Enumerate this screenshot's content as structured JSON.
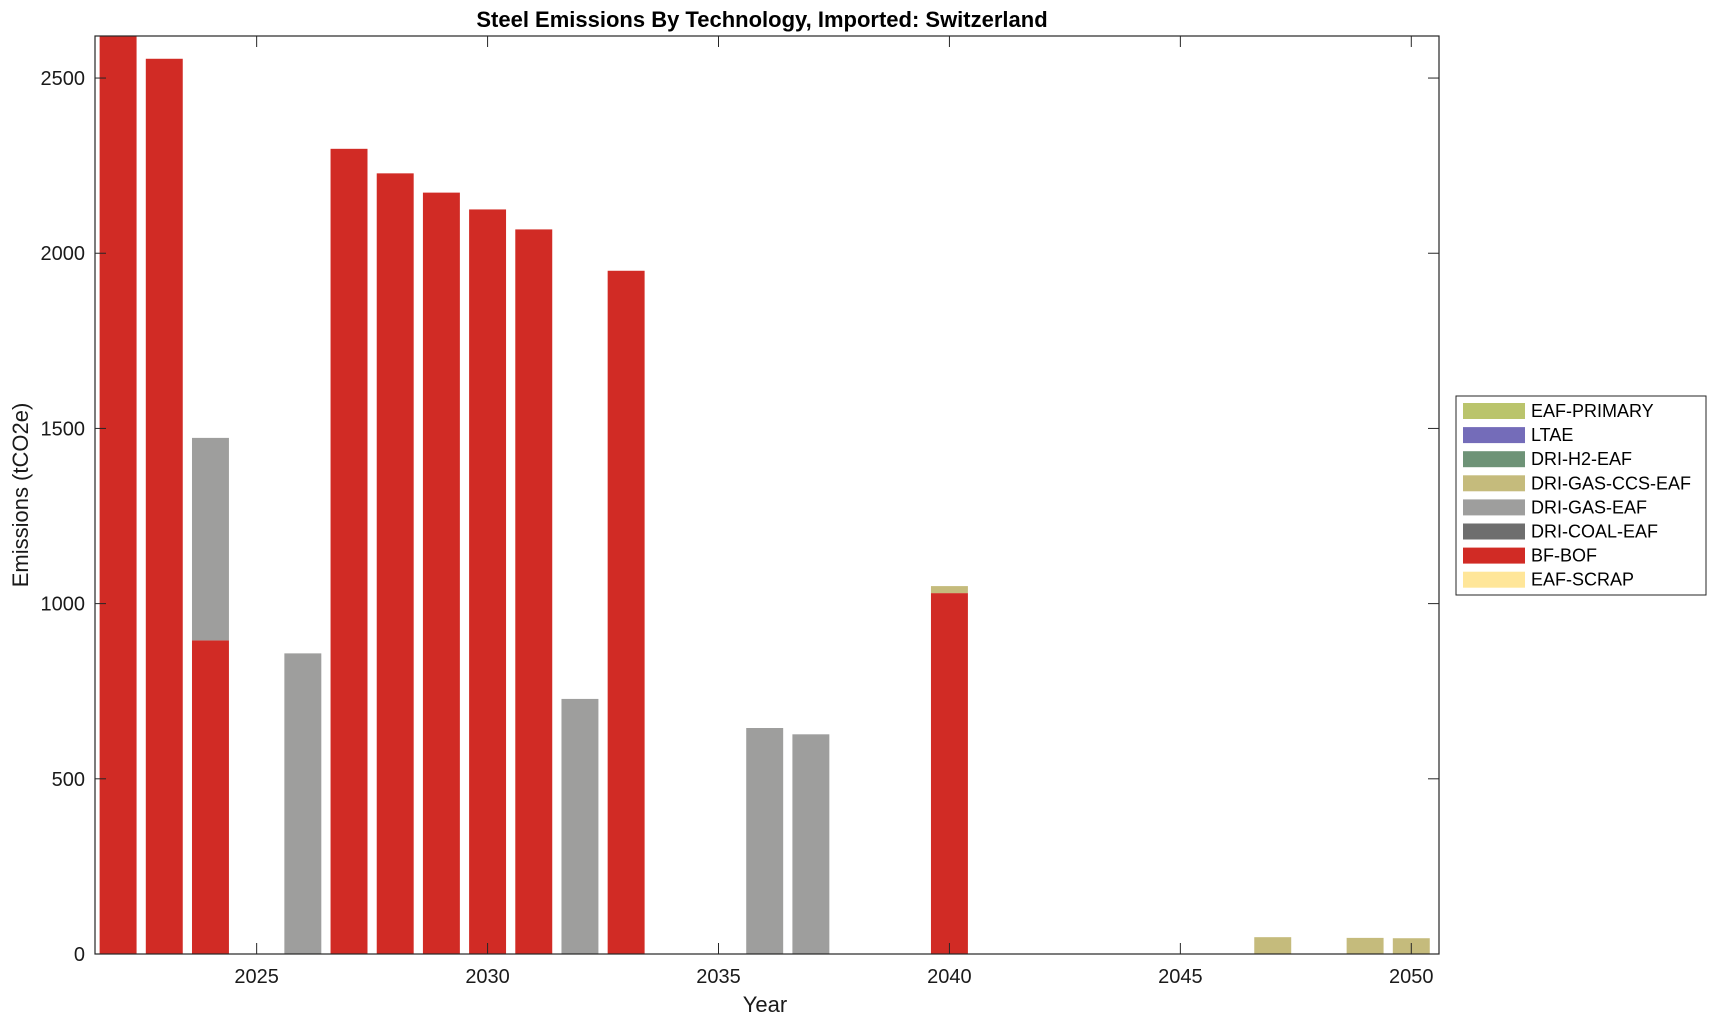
{
  "chart_data": {
    "type": "bar",
    "stacked": true,
    "title": "Steel Emissions By Technology, Imported: Switzerland",
    "xlabel": "Year",
    "ylabel": "Emissions (tCO2e)",
    "xlim": [
      2021.5,
      2050.6
    ],
    "ylim": [
      0,
      2620
    ],
    "xticks": [
      2025,
      2030,
      2035,
      2040,
      2045,
      2050
    ],
    "yticks": [
      0,
      500,
      1000,
      1500,
      2000,
      2500
    ],
    "grid": false,
    "legend_position": "right",
    "x": [
      2022,
      2023,
      2024,
      2025,
      2026,
      2027,
      2028,
      2029,
      2030,
      2031,
      2032,
      2033,
      2034,
      2035,
      2036,
      2037,
      2038,
      2039,
      2040,
      2041,
      2042,
      2043,
      2044,
      2045,
      2046,
      2047,
      2048,
      2049,
      2050
    ],
    "series": [
      {
        "name": "EAF-SCRAP",
        "color": "#ffe699",
        "values": [
          0,
          0,
          0,
          0,
          0,
          0,
          0,
          0,
          0,
          0,
          0,
          0,
          0,
          0,
          0,
          0,
          0,
          0,
          0,
          0,
          0,
          0,
          0,
          0,
          0,
          0,
          0,
          0,
          0
        ]
      },
      {
        "name": "BF-BOF",
        "color": "#d12b25",
        "values": [
          2620,
          2555,
          895,
          0,
          0,
          2298,
          2228,
          2173,
          2125,
          2068,
          0,
          1950,
          0,
          0,
          0,
          0,
          0,
          0,
          1030,
          0,
          0,
          0,
          0,
          0,
          0,
          0,
          0,
          0,
          0
        ]
      },
      {
        "name": "DRI-COAL-EAF",
        "color": "#6e6e6e",
        "values": [
          0,
          0,
          0,
          0,
          0,
          0,
          0,
          0,
          0,
          0,
          0,
          0,
          0,
          0,
          0,
          0,
          0,
          0,
          0,
          0,
          0,
          0,
          0,
          0,
          0,
          0,
          0,
          0,
          0
        ]
      },
      {
        "name": "DRI-GAS-EAF",
        "color": "#9e9e9d",
        "values": [
          0,
          0,
          578,
          0,
          858,
          0,
          0,
          0,
          0,
          0,
          728,
          0,
          0,
          0,
          645,
          627,
          0,
          0,
          0,
          0,
          0,
          0,
          0,
          0,
          0,
          0,
          0,
          0,
          0
        ]
      },
      {
        "name": "DRI-GAS-CCS-EAF",
        "color": "#c5bb7c",
        "values": [
          0,
          0,
          0,
          0,
          0,
          0,
          0,
          0,
          0,
          0,
          0,
          0,
          0,
          0,
          0,
          0,
          0,
          0,
          20,
          0,
          0,
          0,
          0,
          0,
          0,
          48,
          0,
          46,
          45
        ]
      },
      {
        "name": "DRI-H2-EAF",
        "color": "#6e9377",
        "values": [
          0,
          0,
          0,
          0,
          0,
          0,
          0,
          0,
          0,
          0,
          0,
          0,
          0,
          0,
          0,
          0,
          0,
          0,
          0,
          0,
          0,
          0,
          0,
          0,
          0,
          0,
          0,
          0,
          0
        ]
      },
      {
        "name": "LTAE",
        "color": "#746cb9",
        "values": [
          0,
          0,
          0,
          0,
          0,
          0,
          0,
          0,
          0,
          0,
          0,
          0,
          0,
          0,
          0,
          0,
          0,
          0,
          0,
          0,
          0,
          0,
          0,
          0,
          0,
          0,
          0,
          0,
          0
        ]
      },
      {
        "name": "EAF-PRIMARY",
        "color": "#bac46c",
        "values": [
          0,
          0,
          0,
          0,
          0,
          0,
          0,
          0,
          0,
          0,
          0,
          0,
          0,
          0,
          0,
          0,
          0,
          0,
          0,
          0,
          0,
          0,
          0,
          0,
          0,
          0,
          0,
          0,
          0
        ]
      }
    ],
    "legend_order": [
      "EAF-PRIMARY",
      "LTAE",
      "DRI-H2-EAF",
      "DRI-GAS-CCS-EAF",
      "DRI-GAS-EAF",
      "DRI-COAL-EAF",
      "BF-BOF",
      "EAF-SCRAP"
    ]
  }
}
